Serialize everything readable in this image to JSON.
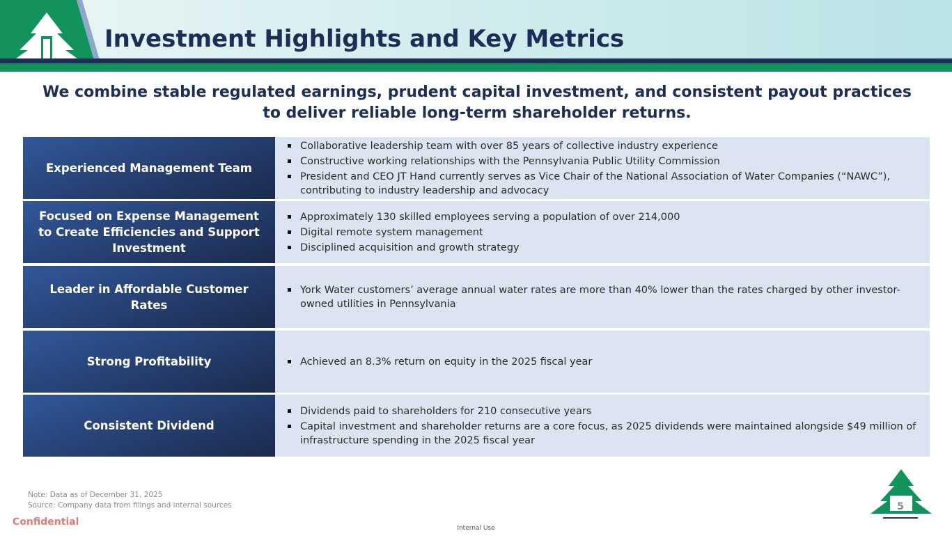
{
  "header": {
    "title": "Investment Highlights and Key Metrics"
  },
  "subtitle": "We combine stable regulated earnings, prudent capital investment, and consistent payout practices to deliver reliable long-term shareholder returns.",
  "rows": [
    {
      "label": "Experienced Management Team",
      "bullets": [
        "Collaborative leadership team with over 85 years of collective industry experience",
        "Constructive working relationships with the Pennsylvania Public Utility Commission",
        "President and CEO JT Hand currently serves as Vice Chair of the National Association of Water Companies (“NAWC”), contributing to industry leadership and advocacy"
      ]
    },
    {
      "label": "Focused on Expense Management to Create Efficiencies and Support Investment",
      "bullets": [
        "Approximately 130 skilled employees serving a population of over 214,000",
        "Digital remote system management",
        "Disciplined acquisition and growth strategy"
      ]
    },
    {
      "label": "Leader in Affordable Customer Rates",
      "bullets": [
        "York Water customers’ average annual water rates are more than 40% lower than the rates charged by other investor-owned utilities in Pennsylvania"
      ]
    },
    {
      "label": "Strong Profitability",
      "bullets": [
        "Achieved an 8.3% return on equity in the 2025 fiscal year"
      ]
    },
    {
      "label": "Consistent Dividend",
      "bullets": [
        "Dividends paid to shareholders for 210 consecutive years",
        "Capital investment and shareholder returns are a core focus, as 2025 dividends were maintained alongside $49 million of infrastructure spending in the 2025 fiscal year"
      ]
    }
  ],
  "footer": {
    "note": "Note: Data as of December 31, 2025",
    "source": "Source: Company data from filings and internal sources",
    "confidential": "Confidential",
    "internal_use": "Internal Use",
    "page_number": 5
  }
}
